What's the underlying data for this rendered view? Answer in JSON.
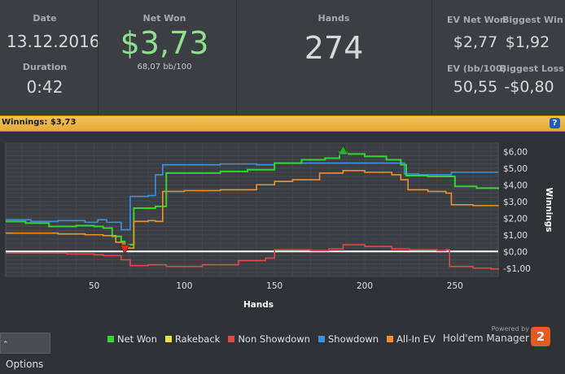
{
  "stats": {
    "date_label": "Date",
    "date_value": "13.12.2016",
    "duration_label": "Duration",
    "duration_value": "0:42",
    "netwon_label": "Net Won",
    "netwon_value": "$3,73",
    "bb_value": "68,07 bb/100",
    "hands_label": "Hands",
    "hands_value": "274",
    "evnet_label": "EV Net Won",
    "evnet_value": "$2,77",
    "bigwin_label": "Biggest Win",
    "bigwin_value": "$1,92",
    "evbb_label": "EV (bb/100)",
    "evbb_value": "50,55",
    "bigloss_label": "Biggest Loss",
    "bigloss_value": "-$0,80"
  },
  "banner": {
    "text": "Winnings: $3,73",
    "help_icon": "help-icon",
    "help_glyph": "?"
  },
  "footer": {
    "options_label": "Options",
    "powered_by": "Powered by",
    "brand_name": "Hold'em Manager",
    "logo_text": "2"
  },
  "legend": [
    {
      "name": "Net Won",
      "color": "#33d433"
    },
    {
      "name": "Rakeback",
      "color": "#e8e23a"
    },
    {
      "name": "Non Showdown",
      "color": "#e04848"
    },
    {
      "name": "Showdown",
      "color": "#3d8fe0"
    },
    {
      "name": "All-In EV",
      "color": "#f0902c"
    }
  ],
  "chart_data": {
    "type": "line",
    "xlabel": "Hands",
    "ylabel": "Winnings",
    "xlim": [
      1,
      274
    ],
    "ylim": [
      -1.5,
      6.5
    ],
    "x_ticks": [
      50,
      100,
      150,
      200,
      250
    ],
    "y_ticks": [
      {
        "v": 6,
        "label": "$6,00"
      },
      {
        "v": 5,
        "label": "$5,00"
      },
      {
        "v": 4,
        "label": "$4,00"
      },
      {
        "v": 3,
        "label": "$3,00"
      },
      {
        "v": 2,
        "label": "$2,00"
      },
      {
        "v": 1,
        "label": "$1,00"
      },
      {
        "v": 0,
        "label": "$0,00"
      },
      {
        "v": -1,
        "label": "-$1,00"
      }
    ],
    "grid": true,
    "series": [
      {
        "name": "Showdown",
        "color": "#3d8fe0",
        "x": [
          1,
          15,
          30,
          45,
          52,
          57,
          65,
          68,
          70,
          75,
          80,
          84,
          88,
          100,
          120,
          140,
          150,
          160,
          175,
          188,
          200,
          215,
          222,
          230,
          248,
          260,
          274
        ],
        "y": [
          1.9,
          1.8,
          1.85,
          1.75,
          1.9,
          1.75,
          1.3,
          1.3,
          3.3,
          3.3,
          3.35,
          4.6,
          5.2,
          5.2,
          5.25,
          5.2,
          5.3,
          5.3,
          5.3,
          5.3,
          5.3,
          5.3,
          4.65,
          4.6,
          4.75,
          4.75,
          4.75
        ]
      },
      {
        "name": "Net Won",
        "color": "#33d433",
        "x": [
          1,
          12,
          25,
          40,
          50,
          55,
          60,
          65,
          67,
          69,
          72,
          78,
          84,
          90,
          100,
          120,
          135,
          150,
          165,
          178,
          186,
          190,
          200,
          212,
          220,
          223,
          235,
          245,
          250,
          262,
          274
        ],
        "y": [
          1.8,
          1.7,
          1.5,
          1.55,
          1.5,
          1.4,
          0.9,
          0.6,
          0.3,
          0.4,
          2.6,
          2.6,
          2.7,
          4.7,
          4.7,
          4.8,
          4.9,
          5.3,
          5.5,
          5.6,
          5.95,
          5.85,
          5.7,
          5.5,
          5.2,
          4.55,
          4.5,
          4.5,
          3.9,
          3.8,
          3.73
        ]
      },
      {
        "name": "All-In EV",
        "color": "#f0902c",
        "x": [
          1,
          15,
          30,
          45,
          55,
          62,
          66,
          69,
          72,
          80,
          84,
          88,
          100,
          120,
          140,
          150,
          160,
          175,
          188,
          200,
          215,
          220,
          224,
          235,
          245,
          248,
          260,
          274
        ],
        "y": [
          1.1,
          1.1,
          1.05,
          1.0,
          0.95,
          0.55,
          0.3,
          0.2,
          1.8,
          1.85,
          1.8,
          3.6,
          3.65,
          3.7,
          4.0,
          4.2,
          4.3,
          4.7,
          4.85,
          4.75,
          4.6,
          4.3,
          3.7,
          3.6,
          3.5,
          2.8,
          2.75,
          2.77
        ]
      },
      {
        "name": "Non Showdown",
        "color": "#e04848",
        "x": [
          1,
          20,
          35,
          50,
          55,
          65,
          70,
          80,
          90,
          110,
          130,
          145,
          150,
          170,
          180,
          188,
          200,
          215,
          225,
          240,
          245,
          247,
          260,
          270,
          274
        ],
        "y": [
          -0.1,
          -0.1,
          -0.15,
          -0.2,
          -0.25,
          -0.5,
          -0.85,
          -0.8,
          -0.9,
          -0.8,
          -0.55,
          -0.4,
          0.1,
          0.05,
          0.15,
          0.4,
          0.3,
          0.15,
          0.1,
          0.05,
          0.1,
          -0.9,
          -1.0,
          -1.05,
          -1.0
        ]
      }
    ],
    "markers": [
      {
        "name": "max-marker",
        "x": 188,
        "y": 6.05,
        "color": "#2ea82e",
        "direction": "up"
      },
      {
        "name": "min-marker",
        "x": 67,
        "y": 0.15,
        "color": "#e12626",
        "direction": "down"
      }
    ]
  }
}
